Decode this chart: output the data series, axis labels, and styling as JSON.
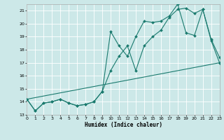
{
  "xlabel": "Humidex (Indice chaleur)",
  "bg_color": "#cce8e8",
  "grid_color": "#ffffff",
  "line_color": "#1a7a6e",
  "xlim": [
    0,
    23
  ],
  "ylim": [
    13,
    21.5
  ],
  "xticks": [
    0,
    1,
    2,
    3,
    4,
    5,
    6,
    7,
    8,
    9,
    10,
    11,
    12,
    13,
    14,
    15,
    16,
    17,
    18,
    19,
    20,
    21,
    22,
    23
  ],
  "yticks": [
    13,
    14,
    15,
    16,
    17,
    18,
    19,
    20,
    21
  ],
  "line1_x": [
    0,
    1,
    2,
    3,
    4,
    5,
    6,
    7,
    8,
    9,
    10,
    11,
    12,
    13,
    14,
    15,
    16,
    17,
    18,
    19,
    20,
    21,
    22,
    23
  ],
  "line1_y": [
    14.2,
    13.3,
    13.9,
    14.0,
    14.2,
    13.9,
    13.7,
    13.8,
    14.0,
    14.8,
    16.4,
    17.5,
    18.3,
    16.4,
    18.3,
    19.0,
    19.5,
    20.5,
    21.1,
    21.2,
    20.8,
    21.1,
    18.7,
    17.0
  ],
  "line2_x": [
    0,
    1,
    2,
    3,
    4,
    5,
    6,
    7,
    8,
    9,
    10,
    11,
    12,
    13,
    14,
    15,
    16,
    17,
    18,
    19,
    20,
    21,
    22,
    23
  ],
  "line2_y": [
    14.2,
    13.3,
    13.9,
    14.0,
    14.2,
    13.9,
    13.7,
    13.8,
    14.0,
    14.8,
    19.4,
    18.3,
    17.5,
    19.0,
    20.2,
    20.1,
    20.2,
    20.6,
    21.5,
    19.3,
    19.1,
    21.1,
    18.8,
    17.4
  ],
  "line3_x": [
    0,
    23
  ],
  "line3_y": [
    14.2,
    17.0
  ]
}
